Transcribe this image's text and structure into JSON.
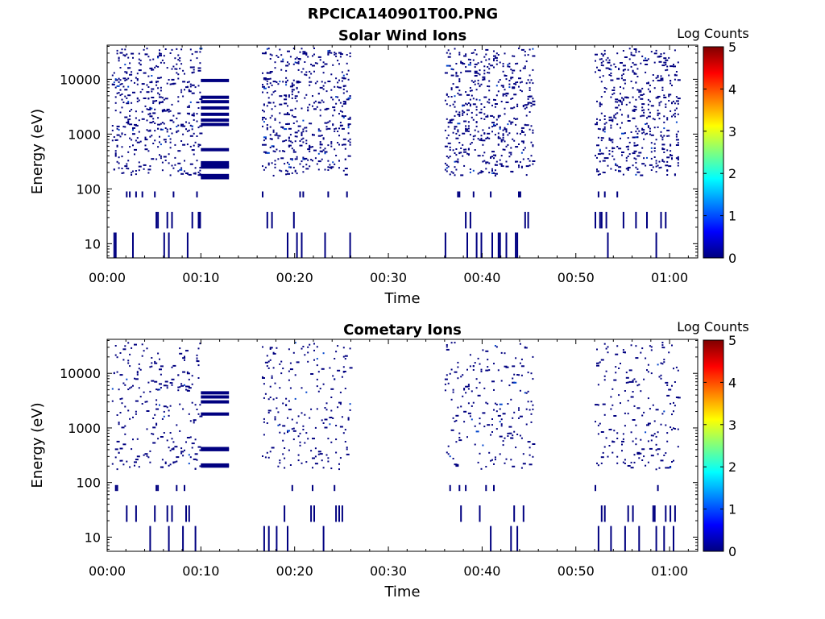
{
  "figure_title": "RPCICA140901T00.PNG",
  "colorbar_label": "Log Counts",
  "colorbar_ticks": [
    "0",
    "1",
    "2",
    "3",
    "4",
    "5"
  ],
  "x_tick_labels": [
    "00:00",
    "00:10",
    "00:20",
    "00:30",
    "00:40",
    "00:50",
    "01:00"
  ],
  "colors": {
    "data_mark": "#000080",
    "data_mark_bright": "#0044cc",
    "colormap": [
      "#00007f",
      "#0000ff",
      "#007fff",
      "#00ffff",
      "#7fff7f",
      "#ffff00",
      "#ff7f00",
      "#ff0000",
      "#7f0000"
    ]
  },
  "chart_data": [
    {
      "type": "heatmap",
      "title": "Solar Wind Ions",
      "xlabel": "Time",
      "ylabel": "Energy (eV)",
      "x_unit": "minutes",
      "xlim": [
        0,
        63
      ],
      "ylim": [
        5.5,
        42000
      ],
      "yscale": "log",
      "y_ticks": [
        10,
        100,
        1000,
        10000
      ],
      "y_tick_labels": [
        "10",
        "100",
        "1000",
        "10000"
      ],
      "colorbar": {
        "label": "Log Counts",
        "range": [
          0,
          5
        ],
        "colormap": "jet"
      },
      "active_intervals_min": [
        [
          0.5,
          10
        ],
        [
          10,
          13
        ],
        [
          16.5,
          26
        ],
        [
          36,
          45.5
        ],
        [
          52,
          61
        ]
      ],
      "steady_bands_eV": {
        "interval_min": [
          10,
          13
        ],
        "energies": [
          9500,
          4700,
          3900,
          3000,
          2300,
          1800,
          1500,
          520,
          300,
          270,
          250,
          175,
          160
        ]
      },
      "scattered_counts_log": [
        0,
        0.5
      ]
    },
    {
      "type": "heatmap",
      "title": "Cometary Ions",
      "xlabel": "Time",
      "ylabel": "Energy (eV)",
      "x_unit": "minutes",
      "xlim": [
        0,
        63
      ],
      "ylim": [
        5.5,
        42000
      ],
      "yscale": "log",
      "y_ticks": [
        10,
        100,
        1000,
        10000
      ],
      "y_tick_labels": [
        "10",
        "100",
        "1000",
        "10000"
      ],
      "colorbar": {
        "label": "Log Counts",
        "range": [
          0,
          5
        ],
        "colormap": "jet"
      },
      "active_intervals_min": [
        [
          0.5,
          10
        ],
        [
          10,
          13
        ],
        [
          16.5,
          26
        ],
        [
          36,
          45.5
        ],
        [
          52,
          61
        ]
      ],
      "steady_bands_eV": {
        "interval_min": [
          10,
          13
        ],
        "energies": [
          4400,
          3700,
          3000,
          1800,
          420,
          400,
          210,
          200
        ]
      },
      "scattered_counts_log": [
        0,
        0.3
      ]
    }
  ]
}
